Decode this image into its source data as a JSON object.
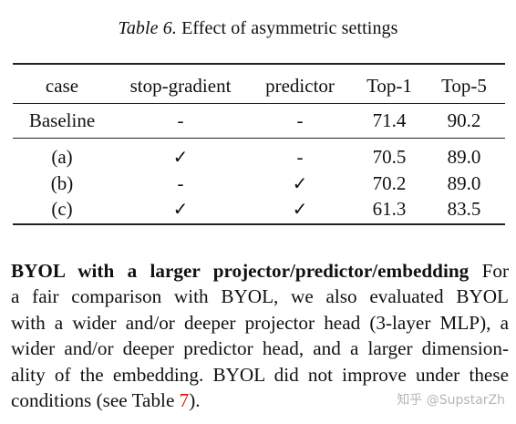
{
  "caption": {
    "label": "Table 6.",
    "text": "Effect of asymmetric settings"
  },
  "table": {
    "headers": [
      "case",
      "stop-gradient",
      "predictor",
      "Top-1",
      "Top-5"
    ],
    "rows": [
      [
        "Baseline",
        "-",
        "-",
        "71.4",
        "90.2"
      ],
      [
        "(a)",
        "✓",
        "-",
        "70.5",
        "89.0"
      ],
      [
        "(b)",
        "-",
        "✓",
        "70.2",
        "89.0"
      ],
      [
        "(c)",
        "✓",
        "✓",
        "61.3",
        "83.5"
      ]
    ]
  },
  "paragraph": {
    "heading": "BYOL with a larger projector/predictor/embedding",
    "line1_rest": "For",
    "line2": "a fair comparison with BYOL, we also evaluated BYOL",
    "line3": "with a wider and/or deeper projector head (3-layer MLP), a",
    "line4": "wider and/or deeper predictor head, and a larger dimension-",
    "line5": "ality of the embedding. BYOL did not improve under these",
    "line6_pre": "conditions (see Table ",
    "line6_ref": "7",
    "line6_post": ")."
  },
  "watermark": "知乎 @SupstarZh"
}
